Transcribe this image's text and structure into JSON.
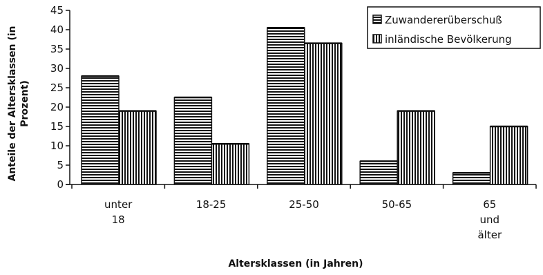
{
  "chart_data": {
    "type": "bar",
    "ylabel": "Anteile der Altersklassen (in Prozent)",
    "xlabel": "Altersklassen (in Jahren)",
    "ylim": [
      0,
      45
    ],
    "yticks": [
      0,
      5,
      10,
      15,
      20,
      25,
      30,
      35,
      40,
      45
    ],
    "categories": [
      "unter 18",
      "18-25",
      "25-50",
      "50-65",
      "65 und älter"
    ],
    "category_lines": [
      [
        "unter",
        "18"
      ],
      [
        "18-25"
      ],
      [
        "25-50"
      ],
      [
        "50-65"
      ],
      [
        "65",
        "und",
        "älter"
      ]
    ],
    "series": [
      {
        "name": "Zuwandererüberschuß",
        "values": [
          28,
          22.5,
          40.5,
          6,
          3
        ],
        "pattern": "horizontal-lines"
      },
      {
        "name": "inländische Bevölkerung",
        "values": [
          19,
          10.5,
          36.5,
          19,
          15
        ],
        "pattern": "vertical-lines"
      }
    ],
    "legend_position": "top-right",
    "grid": false
  }
}
